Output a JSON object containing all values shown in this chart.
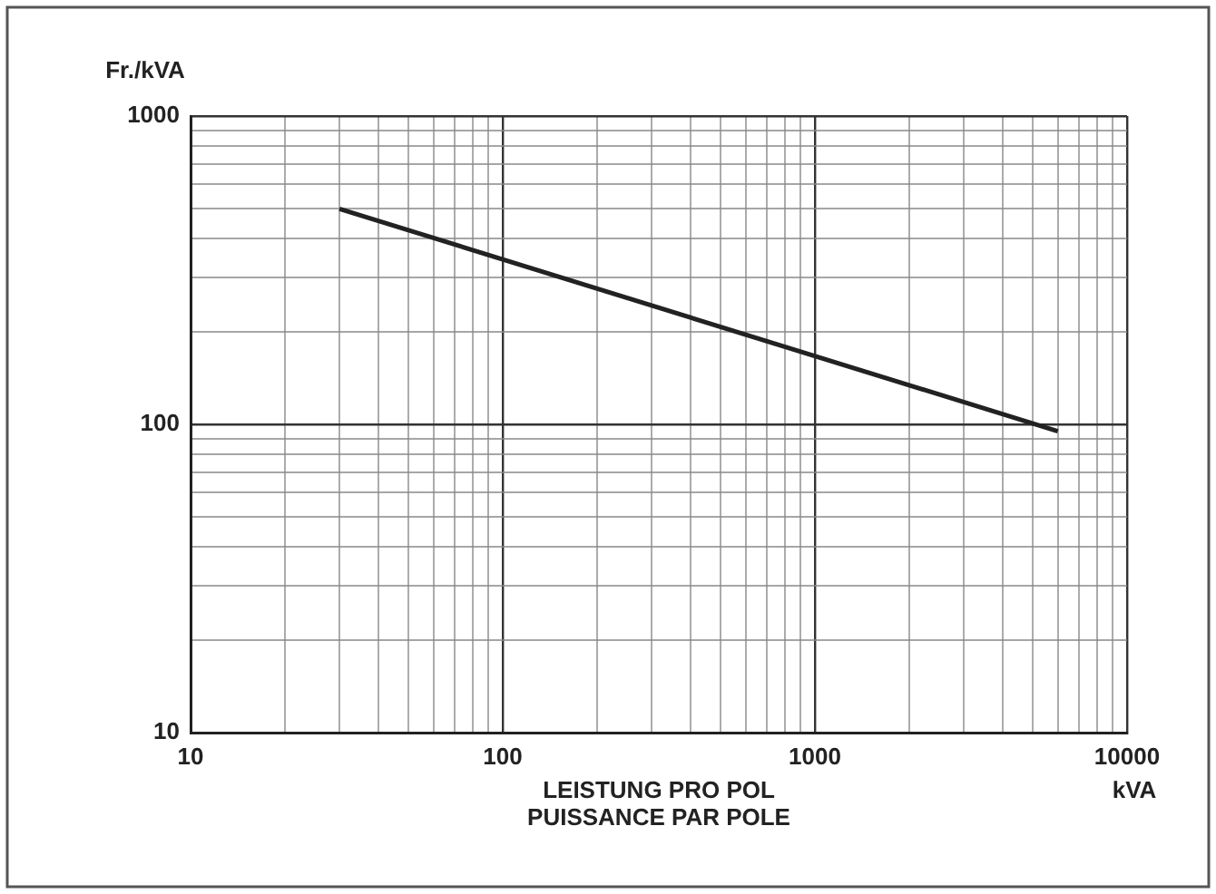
{
  "chart_data": {
    "type": "line",
    "ylabel": "Fr./kVA",
    "xlabel": "LEISTUNG PRO POL\nPUISSANCE PAR POLE",
    "annotations": [
      "kVA"
    ],
    "x": [
      30,
      6000
    ],
    "series": [
      {
        "color": "#222222",
        "values": [
          500,
          95
        ]
      }
    ],
    "log": "xy",
    "grid": true,
    "marker": "none",
    "line_style": "solid",
    "xlim": [
      10,
      10000
    ],
    "ylim": [
      10,
      1000
    ],
    "xticks": [
      10,
      {
        "value": 20,
        "label": null
      },
      {
        "value": 30,
        "label": null
      },
      {
        "value": 40,
        "label": null
      },
      {
        "value": 50,
        "label": null
      },
      {
        "value": 60,
        "label": null
      },
      {
        "value": 70,
        "label": null
      },
      {
        "value": 80,
        "label": null
      },
      {
        "value": 90,
        "label": null
      },
      100,
      {
        "value": 200,
        "label": null
      },
      {
        "value": 300,
        "label": null
      },
      {
        "value": 400,
        "label": null
      },
      {
        "value": 500,
        "label": null
      },
      {
        "value": 600,
        "label": null
      },
      {
        "value": 700,
        "label": null
      },
      {
        "value": 800,
        "label": null
      },
      {
        "value": 900,
        "label": null
      },
      1000,
      {
        "value": 2000,
        "label": null
      },
      {
        "value": 3000,
        "label": null
      },
      {
        "value": 4000,
        "label": null
      },
      {
        "value": 5000,
        "label": null
      },
      {
        "value": 6000,
        "label": null
      },
      {
        "value": 7000,
        "label": null
      },
      {
        "value": 8000,
        "label": null
      },
      {
        "value": 9000,
        "label": null
      },
      10000
    ],
    "yticks": [
      10,
      {
        "value": 20,
        "label": null
      },
      {
        "value": 30,
        "label": null
      },
      {
        "value": 40,
        "label": null
      },
      {
        "value": 50,
        "label": null
      },
      {
        "value": 60,
        "label": null
      },
      {
        "value": 70,
        "label": null
      },
      {
        "value": 80,
        "label": null
      },
      {
        "value": 90,
        "label": null
      },
      100,
      {
        "value": 200,
        "label": null
      },
      {
        "value": 300,
        "label": null
      },
      {
        "value": 400,
        "label": null
      },
      {
        "value": 500,
        "label": null
      },
      {
        "value": 600,
        "label": null
      },
      {
        "value": 700,
        "label": null
      },
      {
        "value": 800,
        "label": null
      },
      {
        "value": 900,
        "label": null
      },
      1000
    ]
  }
}
